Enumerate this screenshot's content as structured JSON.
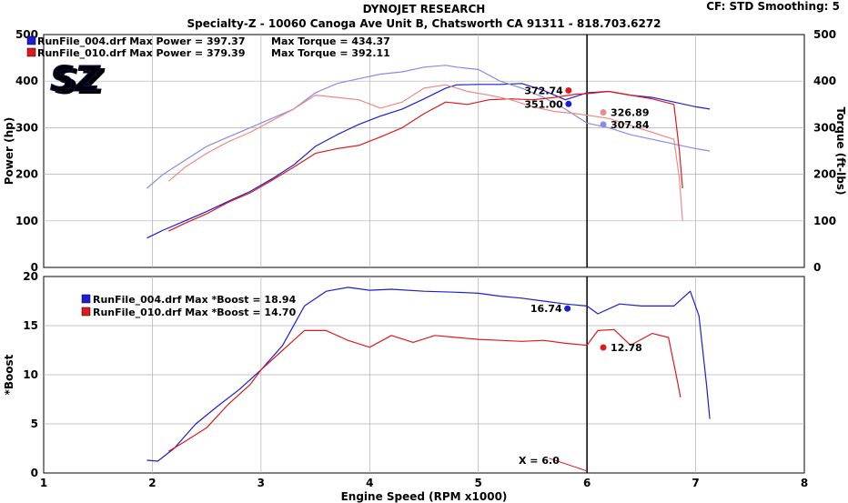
{
  "header": {
    "title": "DYNOJET RESEARCH",
    "subtitle": "Specialty-Z - 10060 Canoga Ave Unit B, Chatsworth CA 91311 - 818.703.6272",
    "cf_info": "CF: STD  Smoothing: 5"
  },
  "logo": {
    "text": "SZ"
  },
  "colors": {
    "run004": "#1d1dd6",
    "run010": "#e01a1a",
    "run004_torque": "#8a8ae8",
    "run010_torque": "#ef8a8a"
  },
  "chart_data": [
    {
      "type": "line",
      "title": "",
      "xlabel": "Engine Speed (RPM x1000)",
      "ylabel": "Power (hp)",
      "y2label": "Torque (ft-lbs)",
      "xlim": [
        1,
        8
      ],
      "ylim": [
        0,
        500
      ],
      "y2lim": [
        0,
        500
      ],
      "x_ticks": [
        "1",
        "2",
        "3",
        "4",
        "5",
        "6",
        "7",
        "8"
      ],
      "y_ticks": [
        "0",
        "100",
        "200",
        "300",
        "400",
        "500"
      ],
      "y2_ticks": [
        "0",
        "100",
        "200",
        "300",
        "400",
        "500"
      ],
      "legend": [
        {
          "text": "RunFile_004.drf Max Power = 397.37",
          "text2": "Max Torque = 434.37",
          "color": "#1d1dd6"
        },
        {
          "text": "RunFile_010.drf Max Power = 379.39",
          "text2": "Max Torque = 392.11",
          "color": "#e01a1a"
        }
      ],
      "cursor_rpm": 6.0,
      "series": [
        {
          "name": "RunFile_004.drf",
          "measure": "power",
          "color": "#1d1dd6",
          "x": [
            1.95,
            2.1,
            2.3,
            2.5,
            2.7,
            2.9,
            3.1,
            3.3,
            3.5,
            3.7,
            3.9,
            4.1,
            4.3,
            4.5,
            4.7,
            4.8,
            5.0,
            5.2,
            5.4,
            5.6,
            5.8,
            6.0,
            6.2,
            6.4,
            6.6,
            6.8,
            7.0,
            7.13
          ],
          "y": [
            63,
            80,
            100,
            120,
            142,
            163,
            190,
            220,
            260,
            285,
            307,
            325,
            340,
            362,
            385,
            392,
            393,
            393,
            395,
            380,
            360,
            375,
            378,
            370,
            365,
            355,
            345,
            340
          ]
        },
        {
          "name": "RunFile_004.drf",
          "measure": "torque",
          "color": "#8a8ae8",
          "x": [
            1.95,
            2.1,
            2.3,
            2.5,
            2.7,
            2.9,
            3.1,
            3.3,
            3.5,
            3.7,
            3.9,
            4.1,
            4.3,
            4.5,
            4.7,
            4.8,
            5.0,
            5.2,
            5.4,
            5.6,
            5.8,
            6.0,
            6.2,
            6.4,
            6.6,
            6.8,
            7.0,
            7.13
          ],
          "y": [
            170,
            200,
            230,
            260,
            280,
            300,
            320,
            340,
            375,
            395,
            405,
            415,
            420,
            430,
            434,
            430,
            425,
            400,
            385,
            365,
            340,
            310,
            300,
            285,
            275,
            265,
            255,
            250
          ]
        },
        {
          "name": "RunFile_010.drf",
          "measure": "power",
          "color": "#e01a1a",
          "x": [
            2.15,
            2.3,
            2.5,
            2.7,
            2.9,
            3.1,
            3.3,
            3.5,
            3.7,
            3.9,
            4.1,
            4.3,
            4.5,
            4.7,
            4.9,
            5.1,
            5.3,
            5.5,
            5.7,
            5.9,
            6.0,
            6.2,
            6.4,
            6.6,
            6.8,
            6.85,
            6.88
          ],
          "y": [
            78,
            95,
            115,
            140,
            160,
            187,
            215,
            245,
            255,
            262,
            280,
            300,
            330,
            355,
            350,
            360,
            362,
            360,
            365,
            372,
            373,
            378,
            370,
            362,
            350,
            250,
            170
          ]
        },
        {
          "name": "RunFile_010.drf",
          "measure": "torque",
          "color": "#ef8a8a",
          "x": [
            2.15,
            2.3,
            2.5,
            2.7,
            2.9,
            3.1,
            3.3,
            3.5,
            3.7,
            3.9,
            4.1,
            4.3,
            4.5,
            4.7,
            4.9,
            5.1,
            5.3,
            5.5,
            5.7,
            5.9,
            6.0,
            6.2,
            6.4,
            6.6,
            6.8,
            6.85,
            6.88
          ],
          "y": [
            185,
            215,
            245,
            270,
            290,
            315,
            340,
            370,
            365,
            360,
            342,
            355,
            385,
            392,
            378,
            370,
            360,
            345,
            335,
            330,
            327,
            320,
            305,
            290,
            275,
            190,
            100
          ]
        }
      ],
      "annotations": [
        {
          "text": "372.74",
          "x": 5.83,
          "y": 380,
          "color": "#e01a1a",
          "side": "left"
        },
        {
          "text": "351.00",
          "x": 5.83,
          "y": 351,
          "color": "#1d1dd6",
          "side": "left"
        },
        {
          "text": "326.89",
          "x": 6.15,
          "y": 333,
          "color": "#ef8a8a",
          "side": "right"
        },
        {
          "text": "307.84",
          "x": 6.15,
          "y": 307,
          "color": "#8a8ae8",
          "side": "right"
        }
      ]
    },
    {
      "type": "line",
      "title": "",
      "xlabel": "Engine Speed (RPM x1000)",
      "ylabel": "*Boost",
      "xlim": [
        1,
        8
      ],
      "ylim": [
        0,
        20
      ],
      "x_ticks": [
        "1",
        "2",
        "3",
        "4",
        "5",
        "6",
        "7",
        "8"
      ],
      "y_ticks": [
        "0",
        "5",
        "10",
        "15",
        "20"
      ],
      "legend": [
        {
          "text": "RunFile_004.drf Max *Boost = 18.94",
          "color": "#1d1dd6"
        },
        {
          "text": "RunFile_010.drf Max *Boost = 14.70",
          "color": "#e01a1a"
        }
      ],
      "cursor_rpm": 6.0,
      "cursor_label": "X = 6.0",
      "series": [
        {
          "name": "RunFile_004.drf",
          "color": "#1d1dd6",
          "x": [
            1.95,
            2.05,
            2.2,
            2.4,
            2.6,
            2.8,
            3.0,
            3.2,
            3.4,
            3.6,
            3.8,
            4.0,
            4.2,
            4.5,
            4.8,
            5.0,
            5.2,
            5.4,
            5.6,
            5.8,
            6.0,
            6.1,
            6.3,
            6.5,
            6.8,
            6.95,
            7.03,
            7.1,
            7.13
          ],
          "y": [
            1.3,
            1.2,
            2.5,
            5.0,
            6.8,
            8.5,
            10.5,
            13.0,
            17.0,
            18.5,
            18.9,
            18.6,
            18.7,
            18.5,
            18.4,
            18.3,
            18.0,
            17.8,
            17.5,
            17.2,
            17.0,
            16.2,
            17.2,
            17.0,
            17.0,
            18.5,
            16.0,
            9.0,
            5.5
          ]
        },
        {
          "name": "RunFile_010.drf",
          "color": "#e01a1a",
          "x": [
            2.15,
            2.3,
            2.5,
            2.7,
            2.9,
            3.0,
            3.2,
            3.4,
            3.6,
            3.8,
            4.0,
            4.2,
            4.4,
            4.6,
            4.8,
            5.0,
            5.2,
            5.4,
            5.6,
            5.8,
            6.0,
            6.1,
            6.25,
            6.4,
            6.6,
            6.75,
            6.82,
            6.86
          ],
          "y": [
            2.2,
            3.2,
            4.6,
            7.0,
            9.0,
            10.5,
            12.5,
            14.5,
            14.5,
            13.5,
            12.8,
            14.0,
            13.3,
            14.0,
            13.8,
            13.6,
            13.5,
            13.4,
            13.5,
            13.2,
            13.0,
            14.5,
            14.6,
            13.0,
            14.2,
            13.8,
            10.0,
            7.7
          ]
        },
        {
          "name": "x-cursor",
          "color": "#e01a1a",
          "x": [
            5.65,
            6.0
          ],
          "y": [
            1.5,
            0.2
          ]
        }
      ],
      "annotations": [
        {
          "text": "16.74",
          "x": 5.82,
          "y": 16.74,
          "color": "#1d1dd6",
          "side": "left"
        },
        {
          "text": "12.78",
          "x": 6.15,
          "y": 12.78,
          "color": "#e01a1a",
          "side": "right"
        }
      ]
    }
  ]
}
